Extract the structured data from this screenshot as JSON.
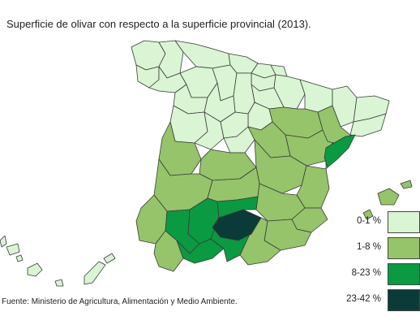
{
  "title": "Superficie de olivar con respecto a la superficie provincial (2013).",
  "source": "Fuente: Ministerio de Agricultura, Alimentación y Medio Ambiente.",
  "legend": [
    {
      "label": "0-1 %",
      "color": "#d9f5d3"
    },
    {
      "label": "1-8 %",
      "color": "#95c46a"
    },
    {
      "label": "8-23 %",
      "color": "#0a9a41"
    },
    {
      "label": "23-42 %",
      "color": "#0b3b38"
    }
  ],
  "colors": {
    "border": "#3b3b3b",
    "background": "#ffffff"
  }
}
